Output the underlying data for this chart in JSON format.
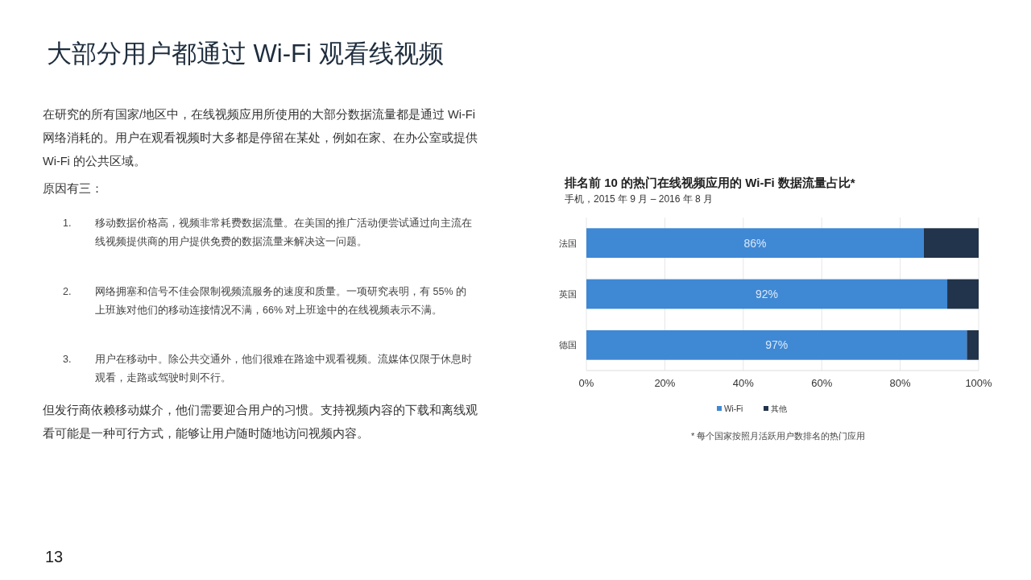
{
  "chart_data": {
    "type": "bar",
    "orientation": "horizontal",
    "stacked": true,
    "title": "排名前 10 的热门在线视频应用的 Wi-Fi 数据流量占比*",
    "subtitle": "手机，2015 年 9 月 – 2016 年 8 月",
    "categories": [
      "法国",
      "英国",
      "德国"
    ],
    "series": [
      {
        "name": "Wi-Fi",
        "color": "#3f88d4",
        "values": [
          86,
          92,
          97
        ],
        "value_labels": [
          "86%",
          "92%",
          "97%"
        ]
      },
      {
        "name": "其他",
        "color": "#22344b",
        "values": [
          14,
          8,
          3
        ]
      }
    ],
    "xlim": [
      0,
      100
    ],
    "xticks": [
      {
        "value": 0,
        "label": "0%"
      },
      {
        "value": 20,
        "label": "20%"
      },
      {
        "value": 40,
        "label": "40%"
      },
      {
        "value": 60,
        "label": "60%"
      },
      {
        "value": 80,
        "label": "80%"
      },
      {
        "value": 100,
        "label": "100%"
      }
    ],
    "grid": "x",
    "legend": "bottom",
    "annotations": [
      "大部分用户都通过 Wi-Fi 观看线视频",
      "在研究的所有国家/地区中，在线视频应用所使用的大部分数据流量都是通过 Wi-Fi 网络消耗的。用户在观看视频时大多都是停留在某处，例如在家、在办公室或提供 Wi-Fi 的公共区域。",
      "原因有三：",
      "1. 移动数据价格高，视频非常耗费数据流量。在美国的推广活动便尝试通过向主流在线视频提供商的用户提供免费的数据流量来解决这一问题。",
      "2. 网络拥塞和信号不佳会限制视频流服务的速度和质量。一项研究表明，有 55% 的上班族对他们的移动连接情况不满，66% 对上班途中的在线视频表示不满。",
      "3. 用户在移动中。除公共交通外，他们很难在路途中观看视频。流媒体仅限于休息时观看，走路或驾驶时则不行。",
      "但发行商依赖移动媒介，他们需要迎合用户的习惯。支持视频内容的下载和离线观看可能是一种可行方式，能够让用户随时随地访问视频内容。",
      "* 每个国家按照月活跃用户数排名的热门应用",
      "13"
    ]
  }
}
